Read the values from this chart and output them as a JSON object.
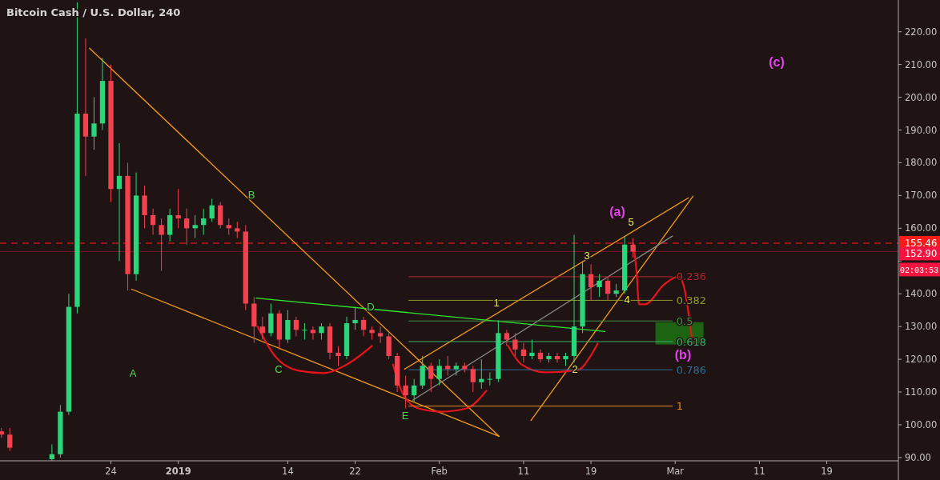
{
  "chart_data": {
    "type": "candlestick",
    "title": "Bitcoin Cash / U.S. Dollar, 240",
    "x": [
      "2018-12-11",
      "2018-12-12",
      "2018-12-17",
      "2018-12-18",
      "2018-12-19",
      "2018-12-20",
      "2018-12-21",
      "2018-12-22",
      "2018-12-23",
      "2018-12-24",
      "2018-12-25",
      "2018-12-26",
      "2018-12-27",
      "2018-12-28",
      "2018-12-29",
      "2018-12-30",
      "2018-12-31",
      "2019-01-01",
      "2019-01-02",
      "2019-01-03",
      "2019-01-04",
      "2019-01-05",
      "2019-01-06",
      "2019-01-07",
      "2019-01-08",
      "2019-01-09",
      "2019-01-10",
      "2019-01-11",
      "2019-01-12",
      "2019-01-13",
      "2019-01-14",
      "2019-01-15",
      "2019-01-16",
      "2019-01-17",
      "2019-01-18",
      "2019-01-19",
      "2019-01-20",
      "2019-01-21",
      "2019-01-22",
      "2019-01-23",
      "2019-01-24",
      "2019-01-25",
      "2019-01-26",
      "2019-01-27",
      "2019-01-28",
      "2019-01-29",
      "2019-01-30",
      "2019-01-31",
      "2019-02-01",
      "2019-02-02",
      "2019-02-03",
      "2019-02-04",
      "2019-02-05",
      "2019-02-06",
      "2019-02-07",
      "2019-02-08",
      "2019-02-09",
      "2019-02-10",
      "2019-02-11",
      "2019-02-12",
      "2019-02-13",
      "2019-02-14",
      "2019-02-15",
      "2019-02-16",
      "2019-02-17",
      "2019-02-18",
      "2019-02-19",
      "2019-02-20",
      "2019-02-21",
      "2019-02-22",
      "2019-02-23",
      "2019-02-24"
    ],
    "ohlc": [
      [
        98,
        99,
        96,
        97
      ],
      [
        97,
        99,
        92,
        93
      ],
      [
        89.5,
        94,
        89,
        91
      ],
      [
        91,
        106,
        90,
        104
      ],
      [
        104,
        140,
        103,
        136
      ],
      [
        136,
        229,
        134,
        195
      ],
      [
        195,
        218,
        176,
        188
      ],
      [
        188,
        200,
        184,
        192
      ],
      [
        192,
        212,
        190,
        205
      ],
      [
        205,
        210,
        168,
        172
      ],
      [
        172,
        186,
        150,
        176
      ],
      [
        176,
        180,
        141,
        146
      ],
      [
        146,
        177,
        144,
        170
      ],
      [
        170,
        173,
        160,
        164
      ],
      [
        164,
        166,
        158,
        161
      ],
      [
        161,
        163,
        147,
        158
      ],
      [
        158,
        166,
        156,
        164
      ],
      [
        164,
        172,
        160,
        163
      ],
      [
        163,
        166,
        155,
        160
      ],
      [
        160,
        164,
        157,
        161
      ],
      [
        161,
        166,
        158,
        163
      ],
      [
        163,
        169,
        162,
        167
      ],
      [
        167,
        168,
        160,
        161
      ],
      [
        161,
        163,
        158,
        160
      ],
      [
        160,
        162,
        157,
        159
      ],
      [
        159,
        161,
        135,
        137
      ],
      [
        137,
        139,
        125,
        130
      ],
      [
        130,
        133,
        126,
        128
      ],
      [
        128,
        137,
        127,
        134
      ],
      [
        134,
        135,
        123,
        126
      ],
      [
        126,
        135,
        125,
        132
      ],
      [
        132,
        133,
        127,
        129
      ],
      [
        129,
        131,
        126,
        129
      ],
      [
        129,
        130,
        126,
        128
      ],
      [
        128,
        131,
        126,
        130
      ],
      [
        130,
        131,
        120,
        122
      ],
      [
        122,
        124,
        118,
        121
      ],
      [
        121,
        133,
        120,
        131
      ],
      [
        131,
        136,
        129,
        132
      ],
      [
        132,
        133,
        127,
        129
      ],
      [
        129,
        130,
        126,
        128
      ],
      [
        128,
        130,
        125,
        127
      ],
      [
        127,
        128,
        120,
        121
      ],
      [
        121,
        122,
        110,
        112
      ],
      [
        112,
        115,
        105,
        109
      ],
      [
        109,
        114,
        107,
        112
      ],
      [
        112,
        121,
        111,
        118
      ],
      [
        118,
        119,
        110,
        114
      ],
      [
        114,
        120,
        112,
        118
      ],
      [
        118,
        121,
        115,
        117
      ],
      [
        117,
        119,
        115,
        118
      ],
      [
        118,
        119,
        116,
        117
      ],
      [
        117,
        118,
        110,
        113
      ],
      [
        113,
        120,
        111,
        114
      ],
      [
        114,
        116,
        112,
        114
      ],
      [
        114,
        132,
        113,
        128
      ],
      [
        128,
        129,
        124,
        126
      ],
      [
        126,
        128,
        121,
        123
      ],
      [
        123,
        125,
        119,
        121
      ],
      [
        121,
        126,
        120,
        122
      ],
      [
        122,
        123,
        119,
        120
      ],
      [
        120,
        122,
        119,
        121
      ],
      [
        121,
        122,
        119,
        120
      ],
      [
        120,
        122,
        118,
        121
      ],
      [
        121,
        158,
        119,
        130
      ],
      [
        130,
        150,
        128,
        146
      ],
      [
        146,
        149,
        138,
        142
      ],
      [
        142,
        146,
        139,
        144
      ],
      [
        144,
        145,
        138,
        140
      ],
      [
        140,
        143,
        139,
        141
      ],
      [
        141,
        157.5,
        140,
        155
      ],
      [
        155,
        157,
        151,
        152.9
      ]
    ],
    "series": [
      {
        "type": "line",
        "color": "#f39c12",
        "x": [
          "2018-12-21T11:00",
          "2019-02-08T02:00"
        ],
        "values": [
          215,
          96.5
        ]
      },
      {
        "type": "line",
        "color": "#f39c12",
        "x": [
          "2018-12-26T11:00",
          "2019-02-08T02:00"
        ],
        "values": [
          141.4,
          96.5
        ]
      },
      {
        "type": "line",
        "color": "#f39c12",
        "x": [
          "2019-01-27T21:00",
          "2019-03-02T14:00"
        ],
        "values": [
          117,
          169.3
        ]
      },
      {
        "type": "line",
        "color": "#f39c12",
        "x": [
          "2019-02-11T21:00",
          "2019-03-03T03:00"
        ],
        "values": [
          101.3,
          169.8
        ]
      },
      {
        "type": "line",
        "color": "#2ee82e",
        "x": [
          "2019-01-10T06:00",
          "2019-02-20T16:00"
        ],
        "values": [
          138.7,
          128.5
        ]
      },
      {
        "type": "line",
        "color": "#8a8a8a",
        "x": [
          "2019-01-28T20:00",
          "2019-02-28T16:00"
        ],
        "values": [
          107.5,
          157.6
        ]
      },
      {
        "type": "line",
        "color": "#e8131b",
        "x": [
          "2019-01-10T10:00",
          "2019-01-12T12:00",
          "2019-01-15T07:00",
          "2019-01-18T05:00",
          "2019-01-21T00:00",
          "2019-01-24T00:00"
        ],
        "values": [
          130,
          120.9,
          116.5,
          115.8,
          118.4,
          124.1
        ]
      },
      {
        "type": "line",
        "color": "#e8131b",
        "x": [
          "2019-01-26T12:00",
          "2019-01-27T14:00",
          "2019-01-29T12:00",
          "2019-02-01T07:00",
          "2019-02-04T05:00",
          "2019-02-06T14:00"
        ],
        "values": [
          118.4,
          109.9,
          105,
          104,
          105,
          110.4
        ]
      },
      {
        "type": "line",
        "color": "#e8131b",
        "x": [
          "2019-02-09T04:00",
          "2019-02-10T18:00",
          "2019-02-13T14:00",
          "2019-02-17T10:00",
          "2019-02-19T05:00",
          "2019-02-19T19:00"
        ],
        "values": [
          124.1,
          118.4,
          116,
          116.7,
          122.1,
          124.8
        ]
      },
      {
        "type": "line",
        "color": "#e8131b",
        "x": [
          "2019-02-24T01:00",
          "2019-02-24T10:00",
          "2019-02-24T17:00",
          "2019-02-25T10:00",
          "2019-02-27T17:00",
          "2019-03-01T10:00",
          "2019-03-02T02:00",
          "2019-03-03T00:00"
        ],
        "values": [
          155.1,
          146.6,
          136.8,
          136.8,
          142.9,
          145.3,
          141.7,
          125.8
        ]
      },
      {
        "type": "line",
        "name": "0.236",
        "color": "#b3262f",
        "x": [
          "2019-01-28T09:00",
          "2019-02-28T16:00"
        ],
        "values": [
          145.2,
          145.2
        ]
      },
      {
        "type": "line",
        "name": "0.382",
        "color": "#8d9a2c",
        "x": [
          "2019-01-28T09:00",
          "2019-02-28T16:00"
        ],
        "values": [
          138,
          138
        ]
      },
      {
        "type": "line",
        "name": "0.5",
        "color": "#3f8f3f",
        "x": [
          "2019-01-28T09:00",
          "2019-02-28T16:00"
        ],
        "values": [
          131.7,
          131.7
        ]
      },
      {
        "type": "line",
        "name": "0.618",
        "color": "#35b56a",
        "x": [
          "2019-01-28T09:00",
          "2019-02-28T16:00"
        ],
        "values": [
          125.4,
          125.4
        ]
      },
      {
        "type": "line",
        "name": "0.786",
        "color": "#2d6f94",
        "x": [
          "2019-01-28T09:00",
          "2019-02-28T16:00"
        ],
        "values": [
          116.8,
          116.8
        ]
      },
      {
        "type": "line",
        "name": "1",
        "color": "#e88e1f",
        "x": [
          "2019-01-28T09:00",
          "2019-02-28T16:00"
        ],
        "values": [
          105.7,
          105.7
        ]
      }
    ],
    "xlim": [
      "2018-12-10T20:00",
      "2019-03-27T12:00"
    ],
    "xticks": [
      {
        "value": "2018-12-24",
        "label": "24"
      },
      {
        "value": "2019-01-01",
        "label": "2019"
      },
      {
        "value": "2019-01-14",
        "label": "14"
      },
      {
        "value": "2019-01-22",
        "label": "22"
      },
      {
        "value": "2019-02-01",
        "label": "Feb"
      },
      {
        "value": "2019-02-11",
        "label": "11"
      },
      {
        "value": "2019-02-19",
        "label": "19"
      },
      {
        "value": "2019-03-01",
        "label": "Mar"
      },
      {
        "value": "2019-03-11",
        "label": "11"
      },
      {
        "value": "2019-03-19",
        "label": "19"
      }
    ],
    "ylim": [
      89,
      229.7
    ],
    "yticks": [
      {
        "value": 90,
        "label": "90.00"
      },
      {
        "value": 100,
        "label": "100.00"
      },
      {
        "value": 110,
        "label": "110.00"
      },
      {
        "value": 120,
        "label": "120.00"
      },
      {
        "value": 130,
        "label": "130.00"
      },
      {
        "value": 140,
        "label": "140.00"
      },
      {
        "value": 150,
        "label": null
      },
      {
        "value": 160,
        "label": "160.00"
      },
      {
        "value": 170,
        "label": "170.00"
      },
      {
        "value": 180,
        "label": "180.00"
      },
      {
        "value": 190,
        "label": "190.00"
      },
      {
        "value": 200,
        "label": "200.00"
      },
      {
        "value": 210,
        "label": "210.00"
      },
      {
        "value": 220,
        "label": "220.00"
      }
    ],
    "ref_lines": [
      {
        "axis": "y",
        "value": 155.46,
        "label": "155.46",
        "color": "#ff1a1a",
        "line_style": "dashed"
      },
      {
        "axis": "y",
        "value": 152.9,
        "label": "152.90",
        "color": "#f5143f",
        "line_style": "solid"
      }
    ],
    "bands": [
      {
        "axis": "y",
        "from": 124.5,
        "to": 131.3,
        "color": "#1c6412"
      }
    ],
    "annotations": [
      "A",
      "B",
      "C",
      "D",
      "E",
      "1",
      "2",
      "3",
      "4",
      "5",
      "(a)",
      "(b)",
      "(c)",
      "02:03:53"
    ]
  }
}
